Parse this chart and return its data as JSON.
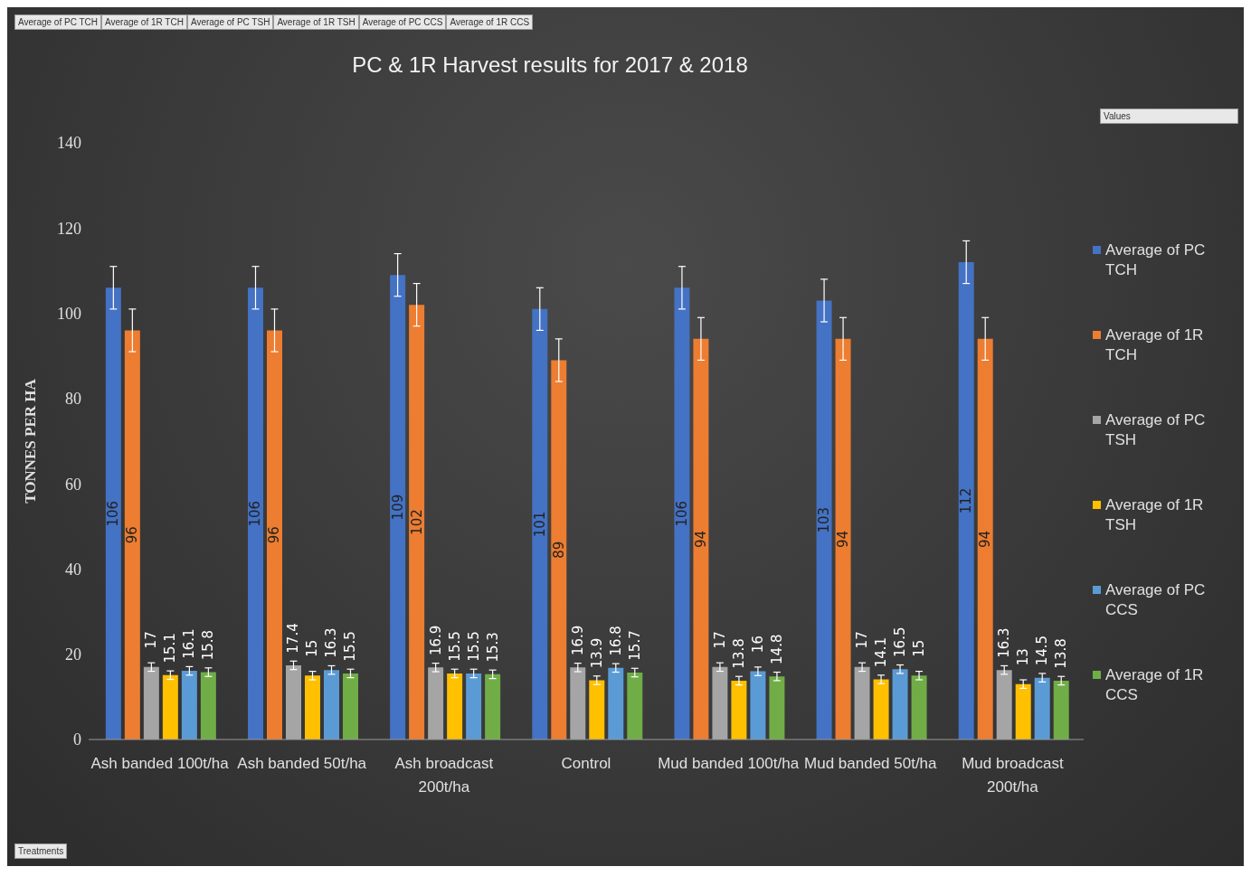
{
  "chart_data": {
    "type": "bar",
    "title": "PC & 1R Harvest results for 2017 & 2018",
    "ylabel": "TONNES PER HA",
    "categories": [
      "Ash banded 100t/ha",
      "Ash banded 50t/ha",
      "Ash broadcast 200t/ha",
      "Control",
      "Mud banded 100t/ha",
      "Mud banded 50t/ha",
      "Mud broadcast 200t/ha"
    ],
    "series": [
      {
        "name": "Average of PC TCH",
        "color": "#4472c4",
        "values": [
          106,
          106,
          109,
          101,
          106,
          103,
          112
        ],
        "errors": [
          5,
          5,
          5,
          5,
          5,
          5,
          5
        ]
      },
      {
        "name": "Average of 1R TCH",
        "color": "#ed7d31",
        "values": [
          96,
          96,
          102,
          89,
          94,
          94,
          94
        ],
        "errors": [
          5,
          5,
          5,
          5,
          5,
          5,
          5
        ]
      },
      {
        "name": "Average of PC TSH",
        "color": "#a5a5a5",
        "values": [
          17,
          17.4,
          16.9,
          16.9,
          17,
          17,
          16.3
        ],
        "errors": [
          1,
          1,
          1,
          1,
          1,
          1,
          1
        ]
      },
      {
        "name": "Average of 1R TSH",
        "color": "#ffc000",
        "values": [
          15.1,
          15,
          15.5,
          13.9,
          13.8,
          14.1,
          13
        ],
        "errors": [
          1,
          1,
          1,
          1,
          1,
          1,
          1
        ]
      },
      {
        "name": "Average of PC CCS",
        "color": "#5b9bd5",
        "values": [
          16.1,
          16.3,
          15.5,
          16.8,
          16,
          16.5,
          14.5
        ],
        "errors": [
          1,
          1,
          1,
          1,
          1,
          1,
          1
        ]
      },
      {
        "name": "Average of 1R CCS",
        "color": "#70ad47",
        "values": [
          15.8,
          15.5,
          15.3,
          15.7,
          14.8,
          15,
          13.8
        ],
        "errors": [
          1,
          1,
          1,
          1,
          1,
          1,
          1
        ]
      }
    ],
    "ylim": [
      0,
      140
    ],
    "yticks": [
      0,
      20,
      40,
      60,
      80,
      100,
      120,
      140
    ],
    "data_labels": true,
    "legend": "right",
    "annotations": [
      "Average of PC TCH",
      "Average of 1R TCH",
      "Average of PC TSH",
      "Average of 1R TSH",
      "Average of PC CCS",
      "Average of 1R CCS",
      "Values",
      "Treatments"
    ]
  }
}
